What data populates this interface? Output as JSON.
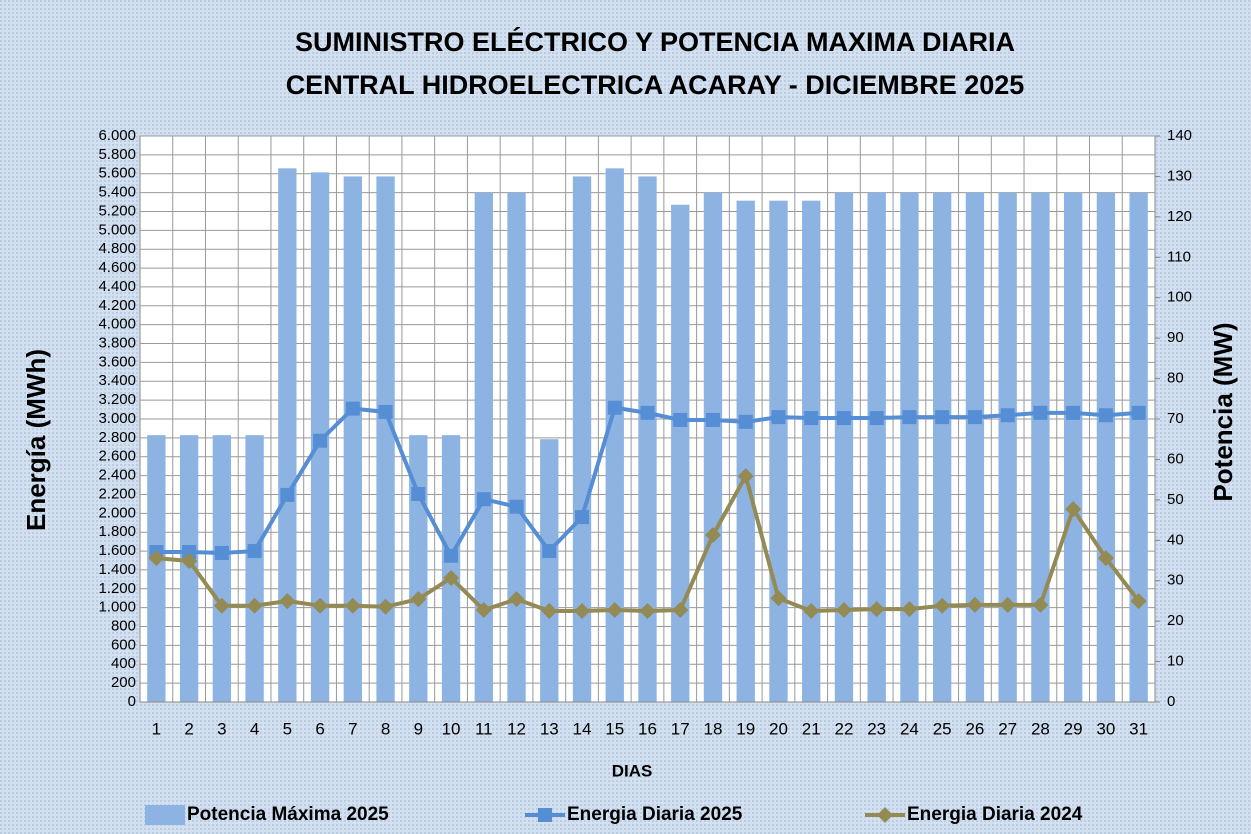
{
  "chart_data": {
    "type": "bar-line",
    "title": [
      "SUMINISTRO ELÉCTRICO Y POTENCIA MAXIMA DIARIA",
      "CENTRAL HIDROELECTRICA ACARAY - DICIEMBRE 2025"
    ],
    "x_label": "DIAS",
    "y_label": "Energía  (MWh)",
    "y2_label": "Potencia (MW)",
    "categories": [
      "1",
      "2",
      "3",
      "4",
      "5",
      "6",
      "7",
      "8",
      "9",
      "10",
      "11",
      "12",
      "13",
      "14",
      "15",
      "16",
      "17",
      "18",
      "19",
      "20",
      "21",
      "22",
      "23",
      "24",
      "25",
      "26",
      "27",
      "28",
      "29",
      "30",
      "31"
    ],
    "series": [
      {
        "name": "Potencia Máxima 2025",
        "type": "bar",
        "axis": "y2",
        "color": "#8db3e2",
        "values": [
          66,
          66,
          66,
          66,
          132,
          131,
          130,
          130,
          66,
          66,
          126,
          126,
          65,
          130,
          132,
          130,
          123,
          126,
          124,
          124,
          124,
          126,
          126,
          126,
          126,
          126,
          126,
          126,
          126,
          126,
          126
        ]
      },
      {
        "name": "Energia Diaria 2025",
        "type": "line",
        "marker": "square",
        "color": "#558ed5",
        "values": [
          1590,
          1590,
          1580,
          1600,
          2195,
          2770,
          3110,
          3075,
          2205,
          1550,
          2150,
          2070,
          1600,
          1960,
          3120,
          3065,
          2990,
          2990,
          2970,
          3020,
          3010,
          3010,
          3010,
          3020,
          3020,
          3020,
          3040,
          3065,
          3065,
          3040,
          3065
        ]
      },
      {
        "name": "Energia Diaria 2024",
        "type": "line",
        "marker": "diamond",
        "color": "#948a54",
        "values": [
          1525,
          1495,
          1020,
          1020,
          1070,
          1020,
          1020,
          1010,
          1090,
          1315,
          975,
          1090,
          965,
          965,
          975,
          965,
          975,
          1770,
          2395,
          1100,
          965,
          975,
          985,
          985,
          1020,
          1030,
          1030,
          1030,
          2045,
          1525,
          1070
        ]
      }
    ],
    "ylim": [
      0,
      6000
    ],
    "yticks": [
      0,
      200,
      400,
      600,
      800,
      {
        "value": 1000,
        "label": "1.000"
      },
      {
        "value": 1200,
        "label": "1.200"
      },
      {
        "value": 1400,
        "label": "1.400"
      },
      {
        "value": 1600,
        "label": "1.600"
      },
      {
        "value": 1800,
        "label": "1.800"
      },
      {
        "value": 2000,
        "label": "2.000"
      },
      {
        "value": 2200,
        "label": "2.200"
      },
      {
        "value": 2400,
        "label": "2.400"
      },
      {
        "value": 2600,
        "label": "2.600"
      },
      {
        "value": 2800,
        "label": "2.800"
      },
      {
        "value": 3000,
        "label": "3.000"
      },
      {
        "value": 3200,
        "label": "3.200"
      },
      {
        "value": 3400,
        "label": "3.400"
      },
      {
        "value": 3600,
        "label": "3.600"
      },
      {
        "value": 3800,
        "label": "3.800"
      },
      {
        "value": 4000,
        "label": "4.000"
      },
      {
        "value": 4200,
        "label": "4.200"
      },
      {
        "value": 4400,
        "label": "4.400"
      },
      {
        "value": 4600,
        "label": "4.600"
      },
      {
        "value": 4800,
        "label": "4.800"
      },
      {
        "value": 5000,
        "label": "5.000"
      },
      {
        "value": 5200,
        "label": "5.200"
      },
      {
        "value": 5400,
        "label": "5.400"
      },
      {
        "value": 5600,
        "label": "5.600"
      },
      {
        "value": 5800,
        "label": "5.800"
      },
      {
        "value": 6000,
        "label": "6.000"
      }
    ],
    "y2lim": [
      0,
      140
    ],
    "y2ticks": [
      0,
      10,
      20,
      30,
      40,
      50,
      60,
      70,
      80,
      90,
      100,
      110,
      120,
      130,
      140
    ],
    "grid": true,
    "legend": "bottom"
  }
}
